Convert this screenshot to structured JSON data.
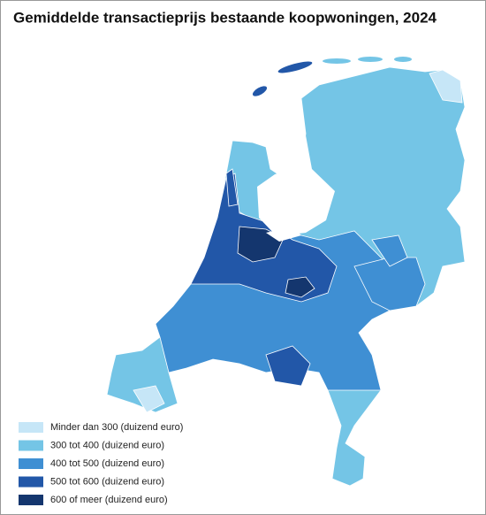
{
  "title": "Gemiddelde transactieprijs bestaande koopwoningen, 2024",
  "legend": [
    {
      "label": "Minder dan 300 (duizend euro)",
      "color": "#c6e6f7"
    },
    {
      "label": "300 tot 400 (duizend euro)",
      "color": "#74c5e6"
    },
    {
      "label": "400 tot 500 (duizend euro)",
      "color": "#3f8fd3"
    },
    {
      "label": "500 tot 600 (duizend euro)",
      "color": "#2257a8"
    },
    {
      "label": "600 of meer (duizend euro)",
      "color": "#14366e"
    }
  ]
}
